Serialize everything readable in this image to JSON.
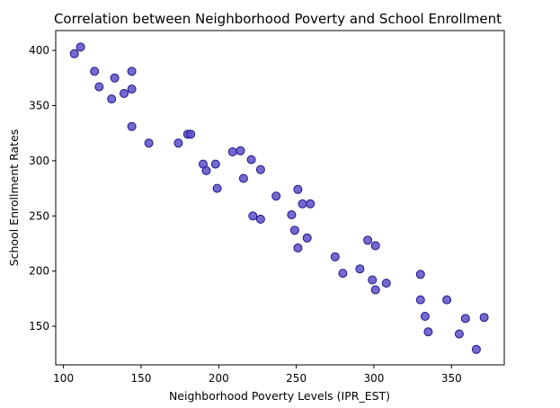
{
  "chart_data": {
    "type": "scatter",
    "title": "Correlation between Neighborhood Poverty and School Enrollment",
    "xlabel": "Neighborhood Poverty Levels (IPR_EST)",
    "ylabel": "School Enrollment Rates",
    "xlim": [
      95,
      384
    ],
    "ylim": [
      115,
      418
    ],
    "xticks": [
      100,
      150,
      200,
      250,
      300,
      350
    ],
    "yticks": [
      150,
      200,
      250,
      300,
      350,
      400
    ],
    "grid": false,
    "marker_color": "#5b4fc9",
    "marker_edge_color": "#1e1487",
    "points": [
      {
        "x": 107,
        "y": 397
      },
      {
        "x": 111,
        "y": 403
      },
      {
        "x": 120,
        "y": 381
      },
      {
        "x": 123,
        "y": 367
      },
      {
        "x": 131,
        "y": 356
      },
      {
        "x": 133,
        "y": 375
      },
      {
        "x": 139,
        "y": 361
      },
      {
        "x": 144,
        "y": 381
      },
      {
        "x": 144,
        "y": 365
      },
      {
        "x": 144,
        "y": 331
      },
      {
        "x": 155,
        "y": 316
      },
      {
        "x": 174,
        "y": 316
      },
      {
        "x": 180,
        "y": 324
      },
      {
        "x": 182,
        "y": 324
      },
      {
        "x": 190,
        "y": 297
      },
      {
        "x": 192,
        "y": 291
      },
      {
        "x": 198,
        "y": 297
      },
      {
        "x": 199,
        "y": 275
      },
      {
        "x": 209,
        "y": 308
      },
      {
        "x": 214,
        "y": 309
      },
      {
        "x": 216,
        "y": 284
      },
      {
        "x": 221,
        "y": 301
      },
      {
        "x": 222,
        "y": 250
      },
      {
        "x": 227,
        "y": 292
      },
      {
        "x": 227,
        "y": 247
      },
      {
        "x": 237,
        "y": 268
      },
      {
        "x": 247,
        "y": 251
      },
      {
        "x": 249,
        "y": 237
      },
      {
        "x": 251,
        "y": 274
      },
      {
        "x": 251,
        "y": 221
      },
      {
        "x": 254,
        "y": 261
      },
      {
        "x": 257,
        "y": 230
      },
      {
        "x": 259,
        "y": 261
      },
      {
        "x": 275,
        "y": 213
      },
      {
        "x": 280,
        "y": 198
      },
      {
        "x": 291,
        "y": 202
      },
      {
        "x": 296,
        "y": 228
      },
      {
        "x": 299,
        "y": 192
      },
      {
        "x": 301,
        "y": 223
      },
      {
        "x": 301,
        "y": 183
      },
      {
        "x": 308,
        "y": 189
      },
      {
        "x": 330,
        "y": 197
      },
      {
        "x": 330,
        "y": 174
      },
      {
        "x": 333,
        "y": 159
      },
      {
        "x": 335,
        "y": 145
      },
      {
        "x": 347,
        "y": 174
      },
      {
        "x": 355,
        "y": 143
      },
      {
        "x": 359,
        "y": 157
      },
      {
        "x": 366,
        "y": 129
      },
      {
        "x": 371,
        "y": 158
      }
    ]
  }
}
